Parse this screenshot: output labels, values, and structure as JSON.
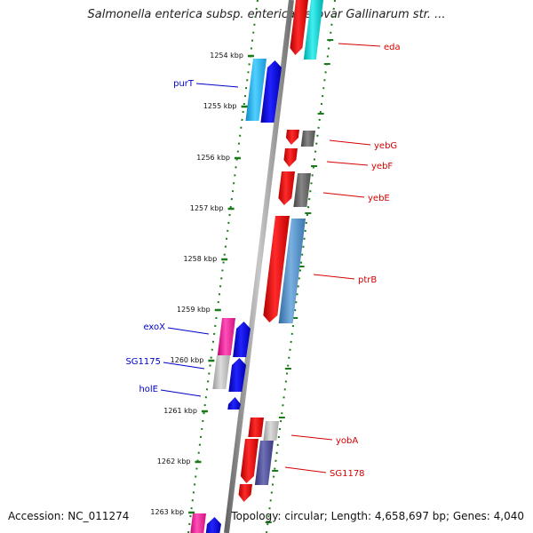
{
  "title": "Salmonella enterica subsp. enterica serovar Gallinarum str. ...",
  "footer": {
    "accession": "Accession: NC_011274",
    "summary": "Topology: circular; Length: 4,658,697 bp; Genes: 4,040"
  },
  "ticks": [
    {
      "label": "1254 kbp"
    },
    {
      "label": "1255 kbp"
    },
    {
      "label": "1256 kbp"
    },
    {
      "label": "1257 kbp"
    },
    {
      "label": "1258 kbp"
    },
    {
      "label": "1259 kbp"
    },
    {
      "label": "1260 kbp"
    },
    {
      "label": "1261 kbp"
    },
    {
      "label": "1262 kbp"
    },
    {
      "label": "1263 kbp"
    }
  ],
  "genes_forward": [
    {
      "label": "eda"
    },
    {
      "label": "yebG"
    },
    {
      "label": "yebF"
    },
    {
      "label": "yebE"
    },
    {
      "label": "ptrB"
    },
    {
      "label": "yobA"
    },
    {
      "label": "SG1178"
    }
  ],
  "genes_reverse": [
    {
      "label": "purT"
    },
    {
      "label": "exoX"
    },
    {
      "label": "SG1175"
    },
    {
      "label": "holE"
    }
  ],
  "colors": {
    "forward_label": "#d40000",
    "reverse_label": "#0000c8",
    "backbone": "#888888",
    "gene_red": "#ee0000",
    "gene_blue": "#0000ee",
    "gene_cyan": "#2ab8e8",
    "gene_teal": "#00c8c8",
    "gene_dark_gray": "#666666",
    "gene_light_gray": "#b8b8b8",
    "gene_steel": "#4a86c0",
    "gene_pink": "#ee2299",
    "gene_slate": "#4a4a90",
    "tick_green": "#1a7a1a"
  }
}
